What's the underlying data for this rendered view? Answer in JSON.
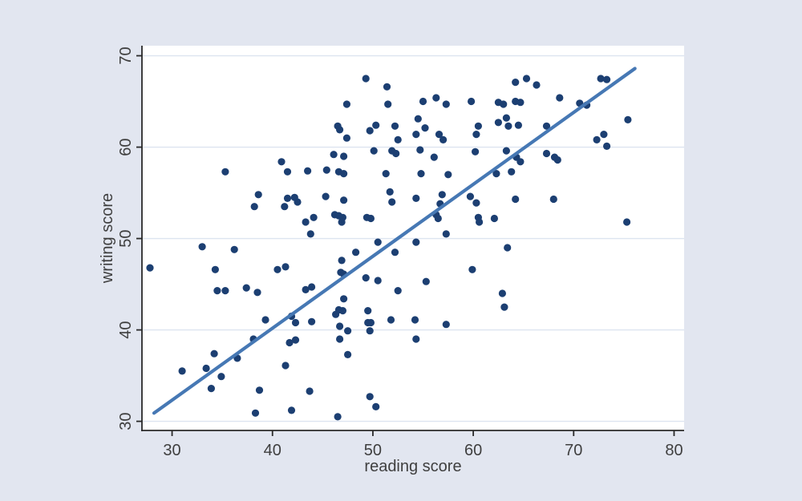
{
  "chart_data": {
    "type": "scatter",
    "title": "",
    "xlabel": "reading score",
    "ylabel": "writing score",
    "xlim": [
      27.0,
      81.0
    ],
    "ylim": [
      29.0,
      71.1
    ],
    "x_ticks": [
      30,
      40,
      50,
      60,
      70,
      80
    ],
    "y_ticks": [
      30,
      40,
      50,
      60,
      70
    ],
    "grid": "horizontal",
    "legend": "none",
    "background_color": "#e2e6f0",
    "plot_background": "#ffffff",
    "grid_color": "#dde4f0",
    "axis_color": "#2a2a2a",
    "tick_label_color": "#3f3f3f",
    "marker_color": "#1c3f72",
    "fit_line_color": "#4678b4",
    "fit_line": {
      "x1": 28.2,
      "y1": 30.9,
      "x2": 76.1,
      "y2": 68.6
    },
    "points": [
      [
        35.3,
        57.3
      ],
      [
        40.9,
        58.4
      ],
      [
        41.5,
        57.3
      ],
      [
        43.5,
        57.4
      ],
      [
        49.3,
        67.5
      ],
      [
        51.4,
        66.6
      ],
      [
        47.4,
        64.7
      ],
      [
        51.5,
        64.7
      ],
      [
        55,
        65
      ],
      [
        56.3,
        65.4
      ],
      [
        57.3,
        64.7
      ],
      [
        59.8,
        65
      ],
      [
        62.5,
        64.9
      ],
      [
        63,
        64.7
      ],
      [
        46.5,
        62.3
      ],
      [
        46.7,
        61.9
      ],
      [
        47.4,
        61
      ],
      [
        49.7,
        61.8
      ],
      [
        50.3,
        62.4
      ],
      [
        52.2,
        62.3
      ],
      [
        52.5,
        60.8
      ],
      [
        54.5,
        63.1
      ],
      [
        55.2,
        62.1
      ],
      [
        54.3,
        61.4
      ],
      [
        56.6,
        61.4
      ],
      [
        57,
        60.8
      ],
      [
        60.5,
        62.3
      ],
      [
        60.3,
        61.4
      ],
      [
        62.5,
        62.7
      ],
      [
        50.1,
        59.6
      ],
      [
        51.9,
        59.6
      ],
      [
        52.3,
        59.3
      ],
      [
        54.7,
        59.7
      ],
      [
        56.1,
        58.9
      ],
      [
        60.2,
        59.5
      ],
      [
        46.1,
        59.2
      ],
      [
        47.1,
        59
      ],
      [
        45.4,
        57.5
      ],
      [
        46.6,
        57.3
      ],
      [
        47.1,
        57.1
      ],
      [
        51.3,
        57.1
      ],
      [
        54.8,
        57.1
      ],
      [
        57.5,
        57
      ],
      [
        62.3,
        57.1
      ],
      [
        64.2,
        67.1
      ],
      [
        65.3,
        67.5
      ],
      [
        66.3,
        66.8
      ],
      [
        72.7,
        67.5
      ],
      [
        73.3,
        67.4
      ],
      [
        68.6,
        65.4
      ],
      [
        64.2,
        65
      ],
      [
        64.7,
        64.9
      ],
      [
        70.6,
        64.8
      ],
      [
        71.3,
        64.6
      ],
      [
        63.3,
        63.2
      ],
      [
        64.5,
        62.4
      ],
      [
        63.5,
        62.3
      ],
      [
        67.3,
        62.3
      ],
      [
        75.4,
        63
      ],
      [
        72.3,
        60.8
      ],
      [
        73,
        61.4
      ],
      [
        73.3,
        60.1
      ],
      [
        63.3,
        59.6
      ],
      [
        64.3,
        58.9
      ],
      [
        64.7,
        58.4
      ],
      [
        67.3,
        59.3
      ],
      [
        68.1,
        58.9
      ],
      [
        68.4,
        58.6
      ],
      [
        63.8,
        57.3
      ],
      [
        38.6,
        54.8
      ],
      [
        38.2,
        53.5
      ],
      [
        41.5,
        54.4
      ],
      [
        42.2,
        54.5
      ],
      [
        42.5,
        54
      ],
      [
        41.2,
        53.5
      ],
      [
        43.3,
        51.8
      ],
      [
        44.1,
        52.3
      ],
      [
        43.8,
        50.5
      ],
      [
        33,
        49.1
      ],
      [
        36.2,
        48.8
      ],
      [
        27.8,
        46.8
      ],
      [
        34.3,
        46.6
      ],
      [
        40.5,
        46.6
      ],
      [
        41.3,
        46.9
      ],
      [
        34.5,
        44.3
      ],
      [
        35.3,
        44.3
      ],
      [
        37.4,
        44.6
      ],
      [
        38.5,
        44.1
      ],
      [
        43.3,
        44.4
      ],
      [
        43.9,
        44.7
      ],
      [
        45.3,
        54.6
      ],
      [
        47.1,
        54.2
      ],
      [
        46.2,
        52.6
      ],
      [
        46.6,
        52.5
      ],
      [
        47,
        52.3
      ],
      [
        46.9,
        51.8
      ],
      [
        49.4,
        52.3
      ],
      [
        49.8,
        52.2
      ],
      [
        51.7,
        55.1
      ],
      [
        51.9,
        54
      ],
      [
        54.3,
        54.4
      ],
      [
        56.9,
        54.8
      ],
      [
        56.7,
        53.8
      ],
      [
        56.3,
        52.6
      ],
      [
        56.5,
        52.2
      ],
      [
        59.7,
        54.6
      ],
      [
        60.3,
        53.9
      ],
      [
        60.5,
        52.3
      ],
      [
        60.6,
        51.8
      ],
      [
        62.1,
        52.2
      ],
      [
        57.3,
        50.5
      ],
      [
        50.5,
        49.6
      ],
      [
        54.3,
        49.6
      ],
      [
        48.3,
        48.5
      ],
      [
        52.2,
        48.5
      ],
      [
        46.9,
        47.6
      ],
      [
        46.8,
        46.3
      ],
      [
        47.1,
        46.1
      ],
      [
        49.3,
        45.7
      ],
      [
        50.5,
        45.4
      ],
      [
        59.9,
        46.6
      ],
      [
        55.3,
        45.3
      ],
      [
        52.5,
        44.3
      ],
      [
        64.2,
        54.3
      ],
      [
        68,
        54.3
      ],
      [
        75.3,
        51.8
      ],
      [
        63.4,
        49
      ],
      [
        39.3,
        41.1
      ],
      [
        41.9,
        41.5
      ],
      [
        42.3,
        40.8
      ],
      [
        43.9,
        40.9
      ],
      [
        38.1,
        39
      ],
      [
        41.7,
        38.6
      ],
      [
        42.3,
        38.9
      ],
      [
        34.2,
        37.4
      ],
      [
        36.5,
        36.9
      ],
      [
        31,
        35.5
      ],
      [
        33.4,
        35.8
      ],
      [
        34.9,
        34.9
      ],
      [
        33.9,
        33.6
      ],
      [
        41.3,
        36.1
      ],
      [
        43.7,
        33.3
      ],
      [
        38.7,
        33.4
      ],
      [
        41.9,
        31.2
      ],
      [
        38.3,
        30.9
      ],
      [
        46.6,
        42.2
      ],
      [
        46.3,
        41.7
      ],
      [
        47,
        42.1
      ],
      [
        46.7,
        40.4
      ],
      [
        47.5,
        39.9
      ],
      [
        46.7,
        39
      ],
      [
        49.5,
        42.1
      ],
      [
        49.5,
        40.8
      ],
      [
        49.8,
        40.8
      ],
      [
        49.7,
        39.9
      ],
      [
        51.8,
        41.1
      ],
      [
        54.2,
        41.1
      ],
      [
        54.3,
        39
      ],
      [
        57.3,
        40.6
      ],
      [
        47.5,
        37.3
      ],
      [
        49.7,
        32.7
      ],
      [
        50.3,
        31.6
      ],
      [
        46.5,
        30.5
      ],
      [
        63.1,
        42.5
      ],
      [
        62.9,
        44
      ],
      [
        47.1,
        43.4
      ]
    ]
  }
}
